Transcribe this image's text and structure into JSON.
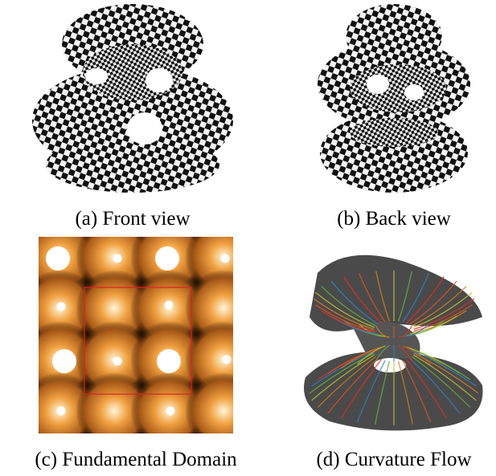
{
  "figure": {
    "subfigures": [
      {
        "caption": "(a) Front view"
      },
      {
        "caption": "(b) Back view"
      },
      {
        "caption": "(c) Fundamental Domain"
      },
      {
        "caption": "(d) Curvature Flow"
      }
    ]
  }
}
